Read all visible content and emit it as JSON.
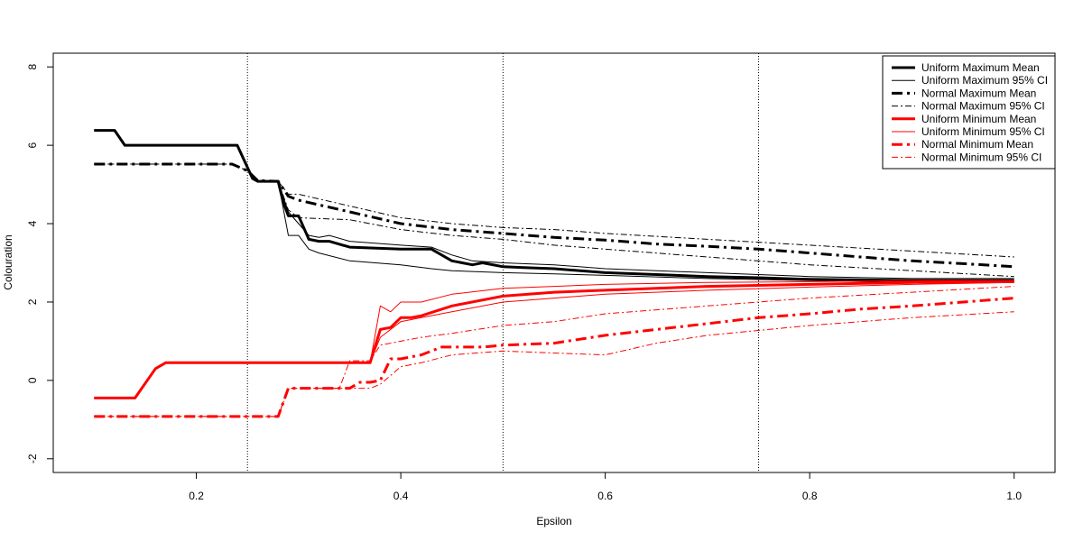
{
  "chart_data": {
    "type": "line",
    "title": "",
    "xlabel": "Epsilon",
    "ylabel": "Colouration",
    "xlim": [
      0.06,
      1.04
    ],
    "ylim": [
      -2.35,
      8.35
    ],
    "x_ticks": [
      0.2,
      0.4,
      0.6,
      0.8,
      1.0
    ],
    "x_tick_labels": [
      "0.2",
      "0.4",
      "0.6",
      "0.8",
      "1.0"
    ],
    "y_ticks": [
      -2,
      0,
      2,
      4,
      6,
      8
    ],
    "y_tick_labels": [
      "-2",
      "0",
      "2",
      "4",
      "6",
      "8"
    ],
    "reference_lines_x": [
      0.25,
      0.5,
      0.75
    ],
    "grid": false,
    "legend_position": "top-right",
    "series": [
      {
        "name": "Uniform Maximum Mean",
        "color": "#000000",
        "style": "solid",
        "weight": "thick",
        "x": [
          0.1,
          0.12,
          0.13,
          0.2,
          0.24,
          0.255,
          0.26,
          0.28,
          0.285,
          0.29,
          0.3,
          0.31,
          0.32,
          0.33,
          0.35,
          0.4,
          0.43,
          0.45,
          0.47,
          0.48,
          0.5,
          0.52,
          0.55,
          0.6,
          0.65,
          0.7,
          0.75,
          0.8,
          0.9,
          1.0
        ],
        "y": [
          6.38,
          6.38,
          6.0,
          6.0,
          6.0,
          5.15,
          5.08,
          5.08,
          4.55,
          4.2,
          4.2,
          3.6,
          3.55,
          3.55,
          3.4,
          3.35,
          3.35,
          3.05,
          2.95,
          3.0,
          2.9,
          2.88,
          2.85,
          2.75,
          2.7,
          2.65,
          2.62,
          2.58,
          2.55,
          2.55
        ]
      },
      {
        "name": "Uniform Maximum 95% CI",
        "color": "#000000",
        "style": "solid",
        "weight": "thin",
        "x": [
          0.1,
          0.12,
          0.13,
          0.2,
          0.24,
          0.255,
          0.26,
          0.28,
          0.29,
          0.3,
          0.31,
          0.32,
          0.33,
          0.35,
          0.4,
          0.43,
          0.45,
          0.47,
          0.5,
          0.55,
          0.6,
          0.7,
          0.8,
          0.9,
          1.0
        ],
        "y": [
          6.38,
          6.38,
          6.0,
          6.0,
          6.0,
          5.15,
          5.08,
          5.08,
          4.3,
          4.0,
          3.7,
          3.65,
          3.7,
          3.55,
          3.45,
          3.4,
          3.2,
          3.05,
          3.0,
          2.95,
          2.85,
          2.75,
          2.65,
          2.6,
          2.6
        ]
      },
      {
        "name": "",
        "color": "#000000",
        "style": "solid",
        "weight": "thin",
        "x": [
          0.1,
          0.12,
          0.13,
          0.2,
          0.24,
          0.255,
          0.26,
          0.28,
          0.29,
          0.3,
          0.31,
          0.32,
          0.35,
          0.4,
          0.43,
          0.45,
          0.47,
          0.5,
          0.55,
          0.6,
          0.7,
          0.8,
          0.9,
          1.0
        ],
        "y": [
          6.38,
          6.38,
          6.0,
          6.0,
          6.0,
          5.15,
          5.08,
          5.08,
          3.7,
          3.7,
          3.35,
          3.25,
          3.05,
          2.95,
          2.85,
          2.8,
          2.78,
          2.75,
          2.72,
          2.68,
          2.6,
          2.55,
          2.5,
          2.5
        ]
      },
      {
        "name": "Normal Maximum Mean",
        "color": "#000000",
        "style": "dashdot",
        "weight": "thick",
        "x": [
          0.1,
          0.15,
          0.2,
          0.235,
          0.25,
          0.26,
          0.28,
          0.29,
          0.3,
          0.35,
          0.4,
          0.45,
          0.5,
          0.55,
          0.6,
          0.65,
          0.7,
          0.75,
          0.8,
          0.85,
          0.9,
          0.95,
          1.0
        ],
        "y": [
          5.52,
          5.52,
          5.52,
          5.52,
          5.35,
          5.1,
          5.08,
          4.7,
          4.6,
          4.3,
          4.0,
          3.85,
          3.75,
          3.65,
          3.58,
          3.48,
          3.42,
          3.35,
          3.25,
          3.15,
          3.05,
          2.98,
          2.9
        ]
      },
      {
        "name": "Normal Maximum 95% CI",
        "color": "#000000",
        "style": "dashdot",
        "weight": "thin",
        "x": [
          0.1,
          0.2,
          0.235,
          0.25,
          0.26,
          0.28,
          0.29,
          0.3,
          0.35,
          0.4,
          0.45,
          0.5,
          0.55,
          0.6,
          0.7,
          0.8,
          0.9,
          1.0
        ],
        "y": [
          5.52,
          5.52,
          5.52,
          5.35,
          5.1,
          5.08,
          4.75,
          4.75,
          4.45,
          4.15,
          4.0,
          3.9,
          3.85,
          3.75,
          3.6,
          3.45,
          3.3,
          3.15
        ]
      },
      {
        "name": "",
        "color": "#000000",
        "style": "dashdot",
        "weight": "thin",
        "x": [
          0.1,
          0.2,
          0.235,
          0.25,
          0.26,
          0.28,
          0.29,
          0.3,
          0.35,
          0.4,
          0.45,
          0.5,
          0.55,
          0.6,
          0.7,
          0.8,
          0.9,
          1.0
        ],
        "y": [
          5.52,
          5.52,
          5.52,
          5.35,
          5.1,
          5.08,
          4.35,
          4.15,
          4.1,
          3.85,
          3.7,
          3.6,
          3.45,
          3.35,
          3.15,
          2.95,
          2.8,
          2.65
        ]
      },
      {
        "name": "Uniform Minimum Mean",
        "color": "#ff0000",
        "style": "solid",
        "weight": "thick",
        "x": [
          0.1,
          0.14,
          0.16,
          0.17,
          0.2,
          0.25,
          0.3,
          0.35,
          0.37,
          0.38,
          0.39,
          0.4,
          0.41,
          0.42,
          0.45,
          0.5,
          0.55,
          0.6,
          0.65,
          0.7,
          0.8,
          0.9,
          1.0
        ],
        "y": [
          -0.45,
          -0.45,
          0.3,
          0.45,
          0.45,
          0.45,
          0.45,
          0.45,
          0.45,
          1.3,
          1.35,
          1.6,
          1.6,
          1.65,
          1.9,
          2.15,
          2.25,
          2.3,
          2.35,
          2.4,
          2.45,
          2.5,
          2.52
        ]
      },
      {
        "name": "Uniform Minimum 95% CI",
        "color": "#ff0000",
        "style": "solid",
        "weight": "thin",
        "x": [
          0.1,
          0.14,
          0.16,
          0.17,
          0.2,
          0.3,
          0.37,
          0.38,
          0.39,
          0.4,
          0.42,
          0.45,
          0.5,
          0.55,
          0.6,
          0.7,
          0.8,
          0.9,
          1.0
        ],
        "y": [
          -0.45,
          -0.45,
          0.3,
          0.45,
          0.45,
          0.45,
          0.45,
          1.9,
          1.75,
          2.0,
          2.0,
          2.2,
          2.35,
          2.4,
          2.45,
          2.5,
          2.52,
          2.55,
          2.55
        ]
      },
      {
        "name": "",
        "color": "#ff0000",
        "style": "solid",
        "weight": "thin",
        "x": [
          0.1,
          0.14,
          0.16,
          0.17,
          0.2,
          0.3,
          0.37,
          0.38,
          0.4,
          0.42,
          0.45,
          0.5,
          0.55,
          0.6,
          0.7,
          0.8,
          0.9,
          1.0
        ],
        "y": [
          -0.45,
          -0.45,
          0.3,
          0.45,
          0.45,
          0.45,
          0.45,
          1.1,
          1.5,
          1.6,
          1.75,
          2.0,
          2.1,
          2.2,
          2.3,
          2.38,
          2.45,
          2.5
        ]
      },
      {
        "name": "Normal Minimum Mean",
        "color": "#ff0000",
        "style": "dashdot",
        "weight": "thick",
        "x": [
          0.1,
          0.15,
          0.2,
          0.25,
          0.28,
          0.29,
          0.3,
          0.35,
          0.36,
          0.37,
          0.38,
          0.39,
          0.4,
          0.42,
          0.44,
          0.46,
          0.48,
          0.5,
          0.55,
          0.6,
          0.65,
          0.7,
          0.75,
          0.8,
          0.85,
          0.9,
          0.95,
          1.0
        ],
        "y": [
          -0.92,
          -0.92,
          -0.92,
          -0.92,
          -0.92,
          -0.2,
          -0.2,
          -0.2,
          -0.05,
          -0.05,
          0.0,
          0.55,
          0.55,
          0.65,
          0.85,
          0.85,
          0.85,
          0.9,
          0.95,
          1.15,
          1.3,
          1.45,
          1.6,
          1.7,
          1.82,
          1.9,
          2.0,
          2.1
        ]
      },
      {
        "name": "Normal Minimum 95% CI",
        "color": "#ff0000",
        "style": "dashdot",
        "weight": "thin",
        "x": [
          0.1,
          0.25,
          0.28,
          0.29,
          0.34,
          0.35,
          0.37,
          0.38,
          0.4,
          0.42,
          0.45,
          0.5,
          0.55,
          0.6,
          0.7,
          0.8,
          0.9,
          1.0
        ],
        "y": [
          -0.92,
          -0.92,
          -0.92,
          -0.2,
          -0.2,
          0.5,
          0.5,
          0.9,
          1.0,
          1.1,
          1.2,
          1.4,
          1.5,
          1.7,
          1.9,
          2.1,
          2.25,
          2.4
        ]
      },
      {
        "name": "",
        "color": "#ff0000",
        "style": "dashdot",
        "weight": "thin",
        "x": [
          0.1,
          0.25,
          0.28,
          0.29,
          0.34,
          0.37,
          0.38,
          0.4,
          0.42,
          0.45,
          0.5,
          0.55,
          0.6,
          0.65,
          0.7,
          0.8,
          0.9,
          1.0
        ],
        "y": [
          -0.92,
          -0.92,
          -0.92,
          -0.2,
          -0.2,
          -0.2,
          -0.1,
          0.35,
          0.45,
          0.65,
          0.75,
          0.7,
          0.65,
          0.95,
          1.15,
          1.4,
          1.6,
          1.75
        ]
      }
    ],
    "legend": [
      {
        "label": "Uniform Maximum Mean",
        "color": "#000000",
        "style": "solid",
        "weight": "thick"
      },
      {
        "label": "Uniform Maximum 95% CI",
        "color": "#000000",
        "style": "solid",
        "weight": "thin"
      },
      {
        "label": "Normal Maximum Mean",
        "color": "#000000",
        "style": "dashdot",
        "weight": "thick"
      },
      {
        "label": "Normal Maximum 95% CI",
        "color": "#000000",
        "style": "dashdot",
        "weight": "thin"
      },
      {
        "label": "Uniform Minimum Mean",
        "color": "#ff0000",
        "style": "solid",
        "weight": "thick"
      },
      {
        "label": "Uniform Minimum 95% CI",
        "color": "#ff0000",
        "style": "solid",
        "weight": "thin"
      },
      {
        "label": "Normal Minimum Mean",
        "color": "#ff0000",
        "style": "dashdot",
        "weight": "thick"
      },
      {
        "label": "Normal Minimum 95% CI",
        "color": "#ff0000",
        "style": "dashdot",
        "weight": "thin"
      }
    ]
  }
}
